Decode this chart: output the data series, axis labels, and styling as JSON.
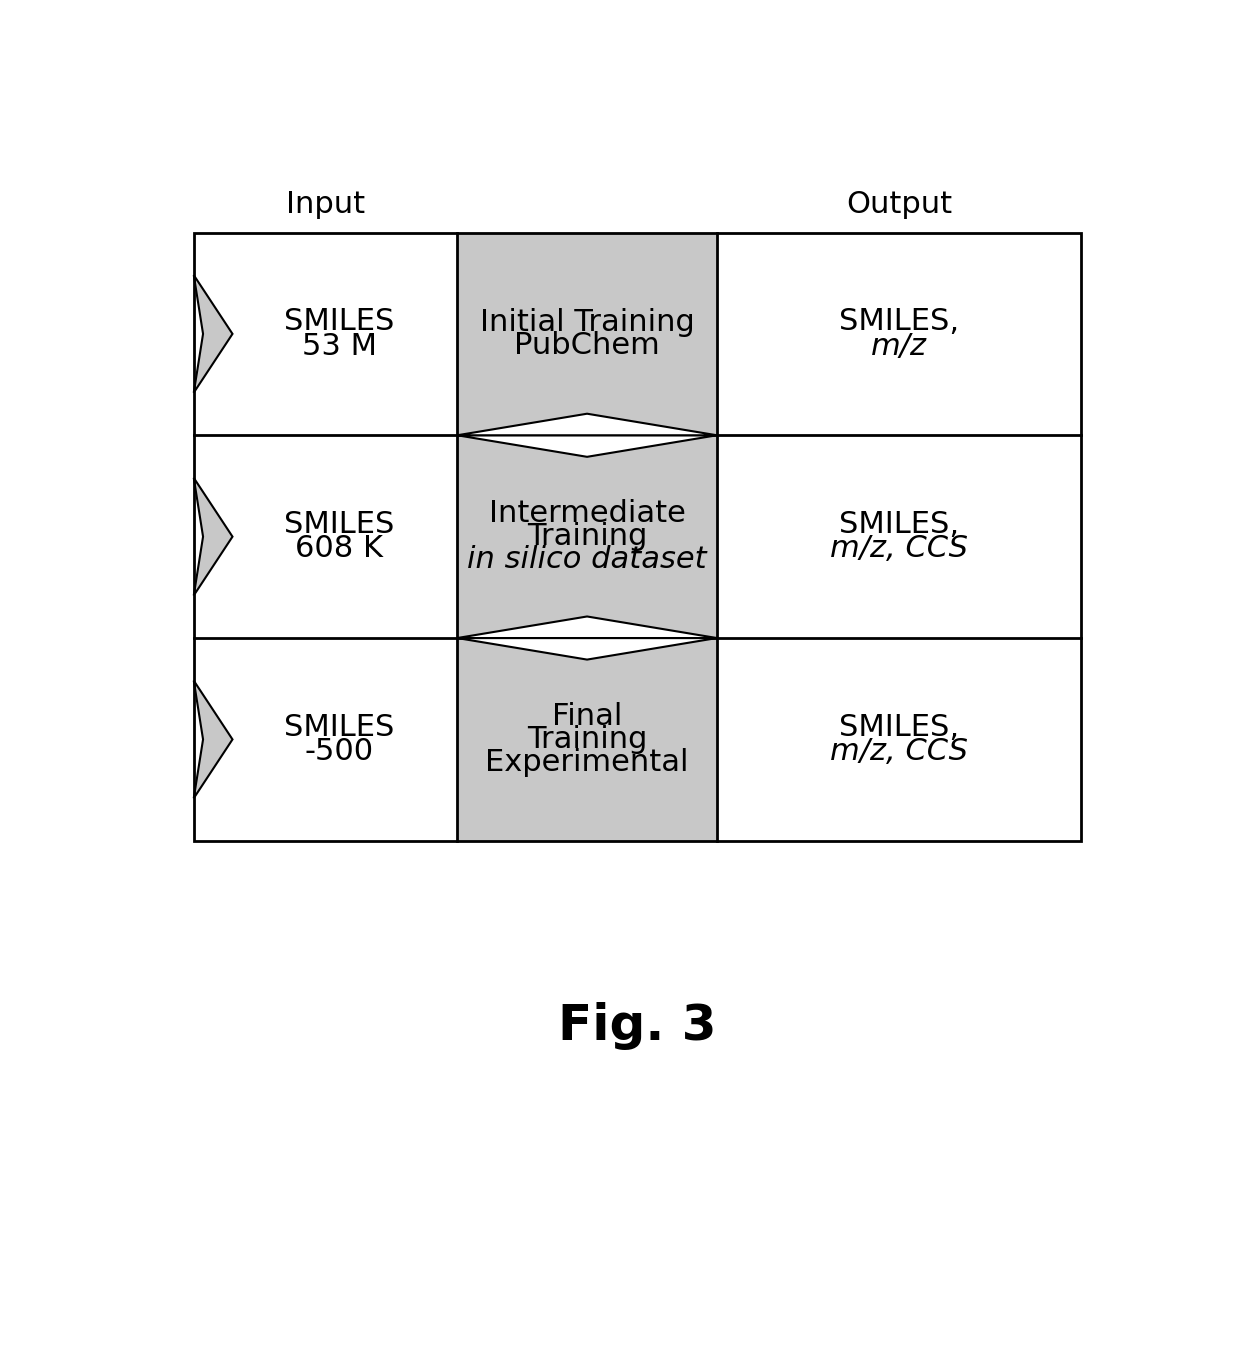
{
  "title": "Fig. 3",
  "header_input": "Input",
  "header_output": "Output",
  "rows": [
    {
      "left_text_lines": [
        "SMILES",
        "53 M"
      ],
      "center_text_lines": [
        "Initial Training",
        "PubChem"
      ],
      "right_text_lines": [
        "SMILES,",
        "m/z"
      ],
      "right_italic": [
        false,
        true
      ]
    },
    {
      "left_text_lines": [
        "SMILES",
        "608 K"
      ],
      "center_text_lines": [
        "Intermediate",
        "Training",
        "in silico dataset"
      ],
      "right_text_lines": [
        "SMILES,",
        "m/z, CCS"
      ],
      "right_italic": [
        false,
        true
      ]
    },
    {
      "left_text_lines": [
        "SMILES",
        "-500"
      ],
      "center_text_lines": [
        "Final",
        "Training",
        "Experimental"
      ],
      "right_text_lines": [
        "SMILES,",
        "m/z, CCS"
      ],
      "right_italic": [
        false,
        true
      ]
    }
  ],
  "bg_color": "#ffffff",
  "center_bg_color": "#c8c8c8",
  "arrow_color": "#c8c8c8",
  "arrow_outline": "#000000",
  "grid_color": "#000000",
  "text_color": "#000000",
  "title_fontsize": 36,
  "header_fontsize": 22,
  "cell_fontsize": 22
}
